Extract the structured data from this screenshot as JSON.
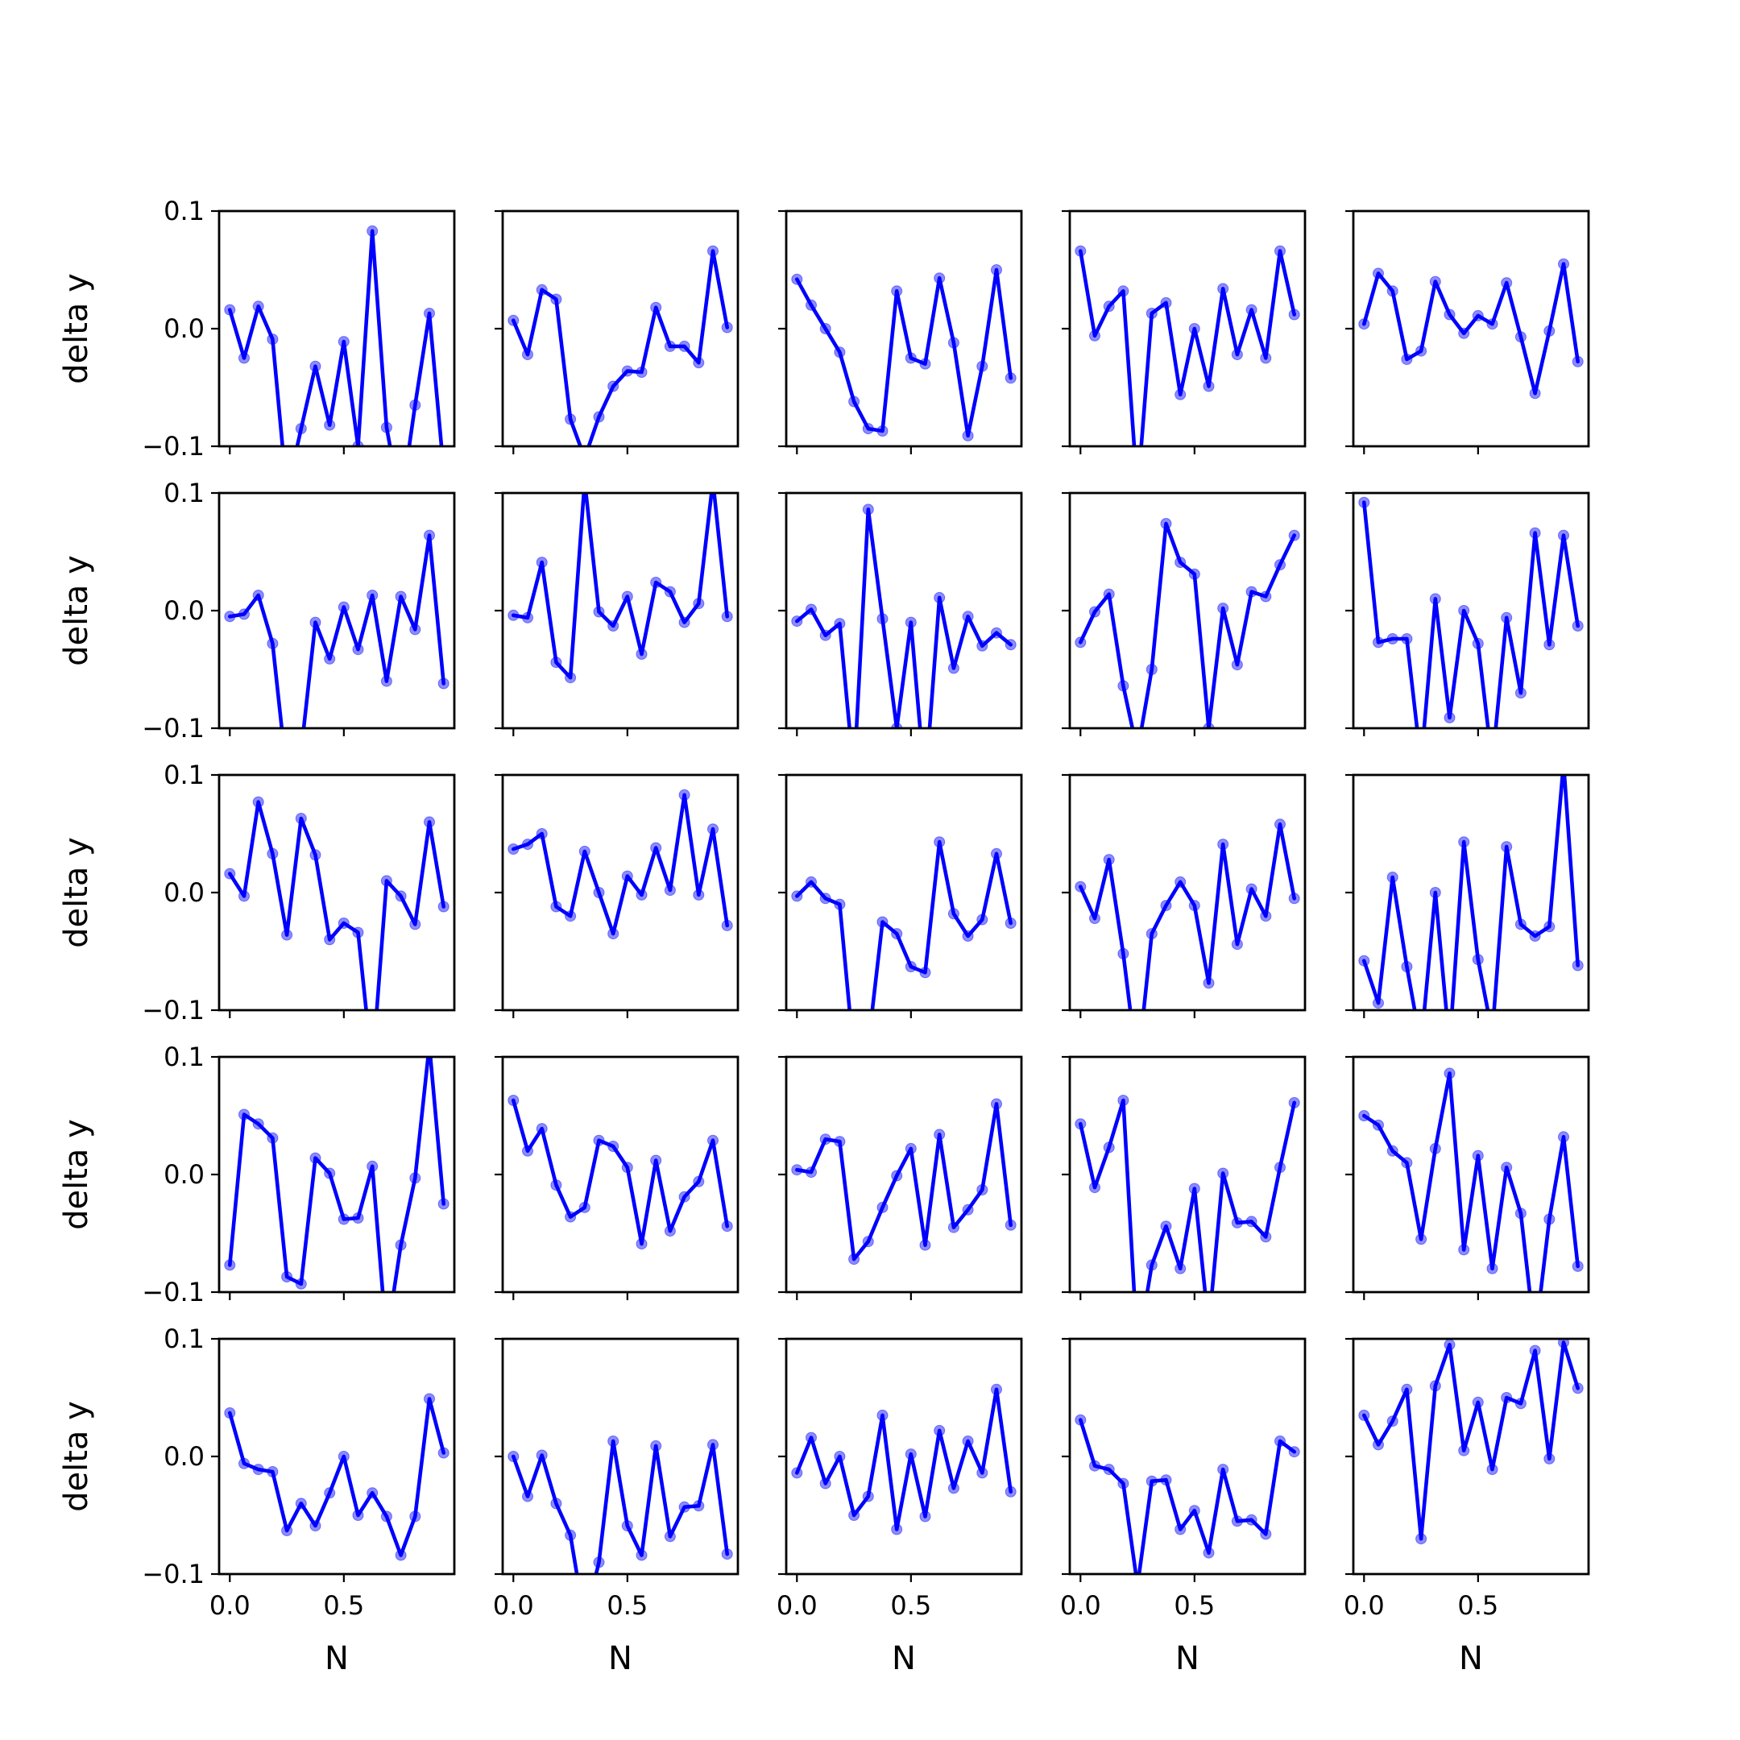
{
  "chart_data": {
    "type": "line",
    "layout_grid": "5x5",
    "sharey": true,
    "xlabel": "N",
    "ylabel": "delta y",
    "xlim": [
      -0.0469,
      0.9844
    ],
    "ylim": [
      -0.1,
      0.1
    ],
    "xticks": [
      0.0,
      0.5
    ],
    "xtick_labels": [
      "0.0",
      "0.5"
    ],
    "yticks": [
      -0.1,
      0.0,
      0.1
    ],
    "ytick_labels": [
      "−0.1",
      "0.0",
      "0.1"
    ],
    "x": [
      0.0,
      0.0625,
      0.125,
      0.1875,
      0.25,
      0.3125,
      0.375,
      0.4375,
      0.5,
      0.5625,
      0.625,
      0.6875,
      0.75,
      0.8125,
      0.875,
      0.9375
    ],
    "colors": {
      "line": "#0000ff",
      "marker": "#6666ff"
    },
    "grid": false,
    "panels": [
      {
        "y": [
          0.016,
          -0.025,
          0.019,
          -0.009,
          -0.14,
          -0.085,
          -0.032,
          -0.082,
          -0.011,
          -0.1,
          0.083,
          -0.084,
          -0.15,
          -0.065,
          0.013,
          -0.12
        ]
      },
      {
        "y": [
          0.007,
          -0.022,
          0.033,
          0.025,
          -0.077,
          -0.11,
          -0.075,
          -0.049,
          -0.036,
          -0.037,
          0.018,
          -0.015,
          -0.015,
          -0.029,
          0.066,
          0.001
        ]
      },
      {
        "y": [
          0.042,
          0.02,
          0.0,
          -0.02,
          -0.062,
          -0.085,
          -0.087,
          0.032,
          -0.025,
          -0.03,
          0.043,
          -0.012,
          -0.091,
          -0.032,
          0.05,
          -0.042
        ]
      },
      {
        "y": [
          0.066,
          -0.006,
          0.019,
          0.032,
          -0.14,
          0.013,
          0.022,
          -0.056,
          0.0,
          -0.049,
          0.034,
          -0.022,
          0.016,
          -0.025,
          0.066,
          0.012
        ]
      },
      {
        "y": [
          0.004,
          0.047,
          0.032,
          -0.026,
          -0.019,
          0.04,
          0.012,
          -0.004,
          0.011,
          0.004,
          0.039,
          -0.007,
          -0.055,
          -0.002,
          0.055,
          -0.028
        ]
      },
      {
        "y": [
          -0.005,
          -0.003,
          0.013,
          -0.028,
          -0.14,
          -0.12,
          -0.01,
          -0.041,
          0.003,
          -0.033,
          0.013,
          -0.06,
          0.012,
          -0.016,
          0.064,
          -0.062
        ]
      },
      {
        "y": [
          -0.004,
          -0.006,
          0.041,
          -0.044,
          -0.057,
          0.11,
          -0.001,
          -0.013,
          0.012,
          -0.037,
          0.024,
          0.016,
          -0.01,
          0.006,
          0.11,
          -0.005
        ]
      },
      {
        "y": [
          -0.009,
          0.001,
          -0.021,
          -0.011,
          -0.14,
          0.086,
          -0.007,
          -0.1,
          -0.01,
          -0.15,
          0.011,
          -0.049,
          -0.005,
          -0.03,
          -0.019,
          -0.029
        ]
      },
      {
        "y": [
          -0.027,
          -0.001,
          0.014,
          -0.064,
          -0.12,
          -0.05,
          0.074,
          0.041,
          0.031,
          -0.1,
          0.002,
          -0.046,
          0.016,
          0.012,
          0.039,
          0.064
        ]
      },
      {
        "y": [
          0.092,
          -0.027,
          -0.024,
          -0.024,
          -0.13,
          0.01,
          -0.091,
          0.0,
          -0.028,
          -0.13,
          -0.006,
          -0.07,
          0.066,
          -0.029,
          0.064,
          -0.013
        ]
      },
      {
        "y": [
          0.016,
          -0.003,
          0.077,
          0.033,
          -0.036,
          0.063,
          0.032,
          -0.04,
          -0.026,
          -0.034,
          -0.15,
          0.01,
          -0.003,
          -0.027,
          0.06,
          -0.012
        ]
      },
      {
        "y": [
          0.037,
          0.041,
          0.05,
          -0.012,
          -0.02,
          0.035,
          0.0,
          -0.035,
          0.014,
          -0.002,
          0.038,
          0.002,
          0.083,
          -0.002,
          0.054,
          -0.028
        ]
      },
      {
        "y": [
          -0.003,
          0.009,
          -0.005,
          -0.01,
          -0.14,
          -0.13,
          -0.025,
          -0.035,
          -0.063,
          -0.068,
          0.043,
          -0.018,
          -0.037,
          -0.023,
          0.033,
          -0.026
        ]
      },
      {
        "y": [
          0.005,
          -0.022,
          0.028,
          -0.052,
          -0.15,
          -0.035,
          -0.011,
          0.009,
          -0.011,
          -0.077,
          0.041,
          -0.044,
          0.003,
          -0.02,
          0.058,
          -0.005
        ]
      },
      {
        "y": [
          -0.058,
          -0.094,
          0.013,
          -0.063,
          -0.13,
          0.0,
          -0.13,
          0.043,
          -0.057,
          -0.12,
          0.039,
          -0.027,
          -0.037,
          -0.029,
          0.11,
          -0.062
        ]
      },
      {
        "y": [
          -0.077,
          0.051,
          0.043,
          0.031,
          -0.087,
          -0.093,
          0.014,
          0.001,
          -0.038,
          -0.037,
          0.007,
          -0.14,
          -0.06,
          -0.003,
          0.11,
          -0.025
        ]
      },
      {
        "y": [
          0.063,
          0.02,
          0.039,
          -0.009,
          -0.036,
          -0.028,
          0.029,
          0.024,
          0.006,
          -0.059,
          0.012,
          -0.048,
          -0.019,
          -0.006,
          0.029,
          -0.044
        ]
      },
      {
        "y": [
          0.004,
          0.002,
          0.03,
          0.028,
          -0.072,
          -0.057,
          -0.028,
          -0.001,
          0.022,
          -0.06,
          0.034,
          -0.045,
          -0.03,
          -0.013,
          0.06,
          -0.043
        ]
      },
      {
        "y": [
          0.043,
          -0.011,
          0.023,
          0.063,
          -0.15,
          -0.077,
          -0.044,
          -0.08,
          -0.012,
          -0.13,
          0.001,
          -0.041,
          -0.04,
          -0.053,
          0.006,
          0.061
        ]
      },
      {
        "y": [
          0.05,
          0.042,
          0.02,
          0.01,
          -0.055,
          0.022,
          0.086,
          -0.064,
          0.016,
          -0.08,
          0.006,
          -0.033,
          -0.14,
          -0.038,
          0.032,
          -0.078
        ]
      },
      {
        "y": [
          0.037,
          -0.006,
          -0.011,
          -0.013,
          -0.063,
          -0.04,
          -0.059,
          -0.031,
          0.0,
          -0.05,
          -0.031,
          -0.051,
          -0.084,
          -0.051,
          0.049,
          0.003
        ]
      },
      {
        "y": [
          0.0,
          -0.034,
          0.001,
          -0.04,
          -0.067,
          -0.14,
          -0.09,
          0.013,
          -0.059,
          -0.084,
          0.009,
          -0.068,
          -0.043,
          -0.042,
          0.01,
          -0.083
        ]
      },
      {
        "y": [
          -0.014,
          0.016,
          -0.023,
          0.0,
          -0.05,
          -0.034,
          0.035,
          -0.062,
          0.002,
          -0.051,
          0.022,
          -0.027,
          0.013,
          -0.014,
          0.057,
          -0.03
        ]
      },
      {
        "y": [
          0.031,
          -0.008,
          -0.011,
          -0.023,
          -0.11,
          -0.021,
          -0.02,
          -0.062,
          -0.046,
          -0.082,
          -0.011,
          -0.055,
          -0.054,
          -0.066,
          0.013,
          0.004
        ]
      },
      {
        "y": [
          0.035,
          0.01,
          0.03,
          0.057,
          -0.07,
          0.06,
          0.095,
          0.005,
          0.046,
          -0.011,
          0.05,
          0.045,
          0.09,
          -0.002,
          0.097,
          0.058
        ]
      }
    ]
  }
}
